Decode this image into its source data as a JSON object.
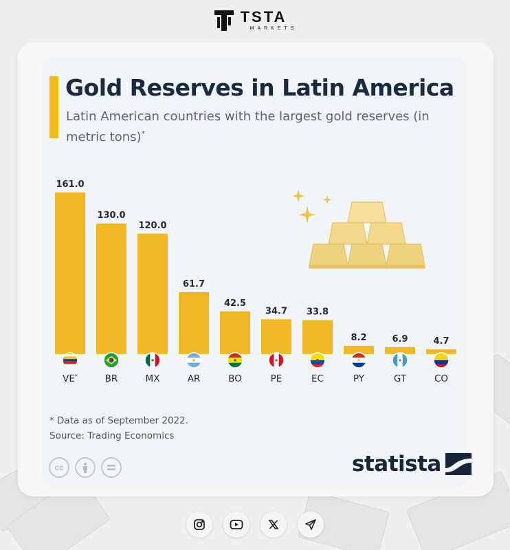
{
  "brand": {
    "name": "TSTA",
    "sub": "MARKETS"
  },
  "header": {
    "title": "Gold Reserves in Latin America",
    "subtitle": "Latin American countries with the largest gold reserves (in metric tons)",
    "subtitle_mark": "*"
  },
  "chart_data": {
    "type": "bar",
    "title": "Gold Reserves in Latin America",
    "subtitle": "Latin American countries with the largest gold reserves (in metric tons)*",
    "categories": [
      "VE",
      "BR",
      "MX",
      "AR",
      "BO",
      "PE",
      "EC",
      "PY",
      "GT",
      "CO"
    ],
    "category_marks": [
      "*",
      "",
      "",
      "",
      "",
      "",
      "",
      "",
      "",
      ""
    ],
    "value_labels": [
      "161.0",
      "130.0",
      "120.0",
      "61.7",
      "42.5",
      "34.7",
      "33.8",
      "8.2",
      "6.9",
      "4.7"
    ],
    "values": [
      161.0,
      130.0,
      120.0,
      61.7,
      42.5,
      34.7,
      33.8,
      8.2,
      6.9,
      4.7
    ],
    "ylim": [
      0,
      161
    ],
    "grid": false,
    "bar_color": "#f0b823",
    "flags": [
      "venezuela-flag",
      "brazil-flag",
      "mexico-flag",
      "argentina-flag",
      "bolivia-flag",
      "peru-flag",
      "ecuador-flag",
      "paraguay-flag",
      "guatemala-flag",
      "colombia-flag"
    ]
  },
  "notes": {
    "footnote": "* Data as of September 2022.",
    "source": "Source: Trading Economics"
  },
  "license_icons": [
    "creative-commons-icon",
    "attribution-icon",
    "no-derivatives-icon"
  ],
  "license_cc_text": "cc",
  "publisher": {
    "name": "statista"
  },
  "socials": [
    "instagram-icon",
    "youtube-icon",
    "x-icon",
    "telegram-icon"
  ],
  "colors": {
    "accent": "#f0b823",
    "title": "#1a2b41",
    "text": "#5a6676"
  }
}
